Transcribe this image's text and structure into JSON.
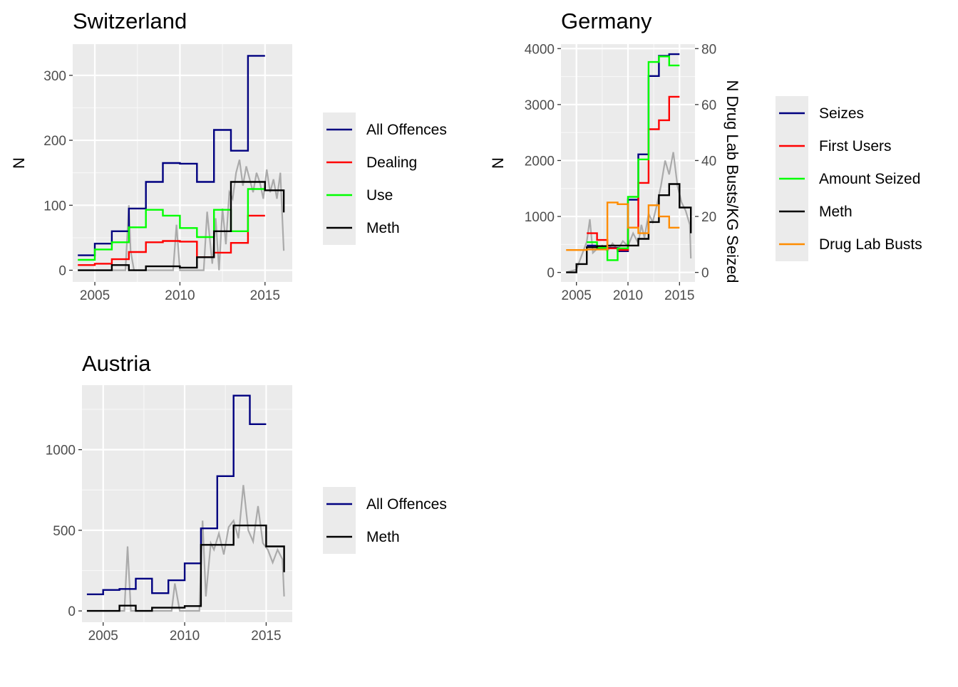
{
  "chart_data": [
    {
      "type": "line",
      "title": "Switzerland",
      "xlabel": "",
      "ylabel": "N",
      "xlim": [
        2003.7,
        2016.6
      ],
      "ylim": [
        -18,
        348
      ],
      "xticks": [
        2005,
        2010,
        2015
      ],
      "yticks": [
        0,
        100,
        200,
        300
      ],
      "grid": true,
      "legend_position": "right",
      "legend": [
        "All Offences",
        "Dealing",
        "Use",
        "Meth"
      ],
      "series": [
        {
          "name": "All Offences",
          "color": "#000080",
          "step": true,
          "x": [
            2004,
            2005,
            2006,
            2007,
            2008,
            2009,
            2010,
            2011,
            2012,
            2013,
            2014,
            2015
          ],
          "y": [
            23,
            41,
            60,
            95,
            136,
            165,
            164,
            136,
            216,
            184,
            330,
            330
          ]
        },
        {
          "name": "Dealing",
          "color": "#ff0000",
          "step": true,
          "x": [
            2004,
            2005,
            2006,
            2007,
            2008,
            2009,
            2010,
            2011,
            2012,
            2013,
            2014,
            2015
          ],
          "y": [
            8,
            10,
            17,
            28,
            43,
            45,
            44,
            20,
            27,
            42,
            84,
            84
          ]
        },
        {
          "name": "Use",
          "color": "#00ff00",
          "step": true,
          "x": [
            2004,
            2005,
            2006,
            2007,
            2008,
            2009,
            2010,
            2011,
            2012,
            2013,
            2014,
            2015
          ],
          "y": [
            16,
            32,
            43,
            66,
            93,
            84,
            65,
            51,
            93,
            60,
            125,
            125
          ]
        },
        {
          "name": "Meth",
          "color": "#000000",
          "step": true,
          "x": [
            2004,
            2005,
            2006,
            2007,
            2008,
            2009,
            2010,
            2011,
            2012,
            2013,
            2014,
            2015,
            2016,
            2016.1
          ],
          "y": [
            0,
            0,
            8,
            0,
            6,
            6,
            4,
            20,
            60,
            136,
            136,
            123,
            123,
            89
          ]
        },
        {
          "name": "",
          "color": "#a6a6a6",
          "step": false,
          "x": [
            2004,
            2006.8,
            2007,
            2007.1,
            2007.3,
            2009.6,
            2009.8,
            2010,
            2011.4,
            2011.6,
            2011.9,
            2012.1,
            2012.3,
            2012.5,
            2012.7,
            2012.9,
            2013.1,
            2013.3,
            2013.5,
            2013.7,
            2013.9,
            2014.1,
            2014.3,
            2014.5,
            2014.7,
            2014.9,
            2015.1,
            2015.3,
            2015.5,
            2015.7,
            2015.9,
            2016.1
          ],
          "y": [
            0,
            0,
            100,
            30,
            0,
            0,
            70,
            0,
            0,
            90,
            10,
            80,
            0,
            95,
            40,
            120,
            110,
            150,
            170,
            130,
            160,
            140,
            120,
            150,
            135,
            110,
            155,
            120,
            140,
            110,
            150,
            30
          ]
        }
      ]
    },
    {
      "type": "line",
      "title": "Germany",
      "xlabel": "",
      "ylabel": "N",
      "ylabel_right": "N Drug Lab Busts/KG Seized",
      "xlim": [
        2003.5,
        2016.5
      ],
      "ylim": [
        -170,
        4080
      ],
      "xticks": [
        2005,
        2010,
        2015
      ],
      "yticks": [
        0,
        1000,
        2000,
        3000,
        4000
      ],
      "yticks_right": [
        0,
        20,
        40,
        60,
        80
      ],
      "grid": true,
      "legend_position": "right",
      "legend": [
        "Seizes",
        "First Users",
        "Amount Seized",
        "Meth",
        "Drug Lab Busts"
      ],
      "series": [
        {
          "name": "Seizes",
          "color": "#000080",
          "step": true,
          "x": [
            2006,
            2007,
            2008,
            2009,
            2010,
            2011,
            2012,
            2013,
            2014,
            2015
          ],
          "y": [
            480,
            420,
            440,
            380,
            1300,
            2110,
            3510,
            3870,
            3900,
            3900
          ]
        },
        {
          "name": "First Users",
          "color": "#ff0000",
          "step": true,
          "x": [
            2006,
            2007,
            2008,
            2009,
            2010,
            2011,
            2012,
            2013,
            2014,
            2015
          ],
          "y": [
            700,
            580,
            430,
            400,
            800,
            1600,
            2560,
            2720,
            3140,
            3140
          ]
        },
        {
          "name": "Amount Seized",
          "color": "#00ff00",
          "step": true,
          "x": [
            2006,
            2007,
            2008,
            2009,
            2010,
            2011,
            2012,
            2013,
            2014,
            2015
          ],
          "y": [
            540,
            440,
            220,
            430,
            1350,
            2020,
            3760,
            3860,
            3700,
            3700
          ]
        },
        {
          "name": "Meth",
          "color": "#000000",
          "step": true,
          "x": [
            2004,
            2005,
            2006,
            2007,
            2008,
            2009,
            2010,
            2011,
            2012,
            2013,
            2014,
            2015,
            2016,
            2016.1
          ],
          "y": [
            0,
            150,
            450,
            470,
            480,
            480,
            480,
            600,
            900,
            1380,
            1580,
            1160,
            1160,
            700
          ]
        },
        {
          "name": "Drug Lab Busts",
          "color": "#ff8c00",
          "step": true,
          "x": [
            2004,
            2006,
            2008,
            2009,
            2010,
            2011,
            2012,
            2013,
            2014,
            2015
          ],
          "y": [
            400,
            410,
            1250,
            1220,
            800,
            700,
            1200,
            1000,
            800,
            800
          ]
        },
        {
          "name": "",
          "color": "#a6a6a6",
          "step": false,
          "x": [
            2004,
            2005,
            2005.5,
            2006,
            2006.3,
            2006.6,
            2007,
            2007.5,
            2008,
            2008.5,
            2009,
            2009.5,
            2010,
            2010.5,
            2011,
            2011.3,
            2011.6,
            2012,
            2012.4,
            2012.8,
            2013.2,
            2013.6,
            2014,
            2014.4,
            2014.8,
            2015.2,
            2015.6,
            2016,
            2016.1
          ],
          "y": [
            0,
            50,
            300,
            550,
            950,
            350,
            420,
            480,
            380,
            520,
            400,
            560,
            470,
            700,
            520,
            850,
            620,
            1050,
            900,
            1200,
            1550,
            2000,
            1750,
            2150,
            1550,
            1250,
            1100,
            850,
            250
          ]
        }
      ]
    },
    {
      "type": "line",
      "title": "Austria",
      "xlabel": "",
      "ylabel": "",
      "xlim": [
        2003.7,
        2016.6
      ],
      "ylim": [
        -70,
        1400
      ],
      "xticks": [
        2005,
        2010,
        2015
      ],
      "yticks": [
        0,
        500,
        1000
      ],
      "grid": true,
      "legend_position": "right",
      "legend": [
        "All Offences",
        "Meth"
      ],
      "series": [
        {
          "name": "All Offences",
          "color": "#000080",
          "step": true,
          "x": [
            2004,
            2005,
            2006,
            2007,
            2008,
            2009,
            2010,
            2011,
            2012,
            2013,
            2014,
            2015
          ],
          "y": [
            103,
            130,
            136,
            200,
            110,
            190,
            295,
            512,
            836,
            1335,
            1158,
            1158
          ]
        },
        {
          "name": "Meth",
          "color": "#000000",
          "step": true,
          "x": [
            2004,
            2006,
            2007,
            2008,
            2009,
            2010,
            2011,
            2012,
            2013,
            2014,
            2015,
            2016,
            2016.1
          ],
          "y": [
            0,
            33,
            0,
            20,
            20,
            30,
            410,
            410,
            530,
            530,
            400,
            400,
            240
          ]
        },
        {
          "name": "",
          "color": "#a6a6a6",
          "step": false,
          "x": [
            2004,
            2006.3,
            2006.5,
            2006.7,
            2007.5,
            2008,
            2009.2,
            2009.4,
            2009.7,
            2010.9,
            2011.1,
            2011.3,
            2011.6,
            2011.8,
            2012.1,
            2012.4,
            2012.7,
            2013,
            2013.3,
            2013.6,
            2013.9,
            2014.2,
            2014.5,
            2014.8,
            2015.1,
            2015.4,
            2015.7,
            2016,
            2016.1
          ],
          "y": [
            0,
            0,
            400,
            0,
            0,
            0,
            0,
            170,
            0,
            0,
            560,
            90,
            420,
            380,
            480,
            350,
            520,
            560,
            450,
            780,
            500,
            430,
            650,
            420,
            380,
            300,
            380,
            320,
            90
          ]
        }
      ]
    }
  ]
}
